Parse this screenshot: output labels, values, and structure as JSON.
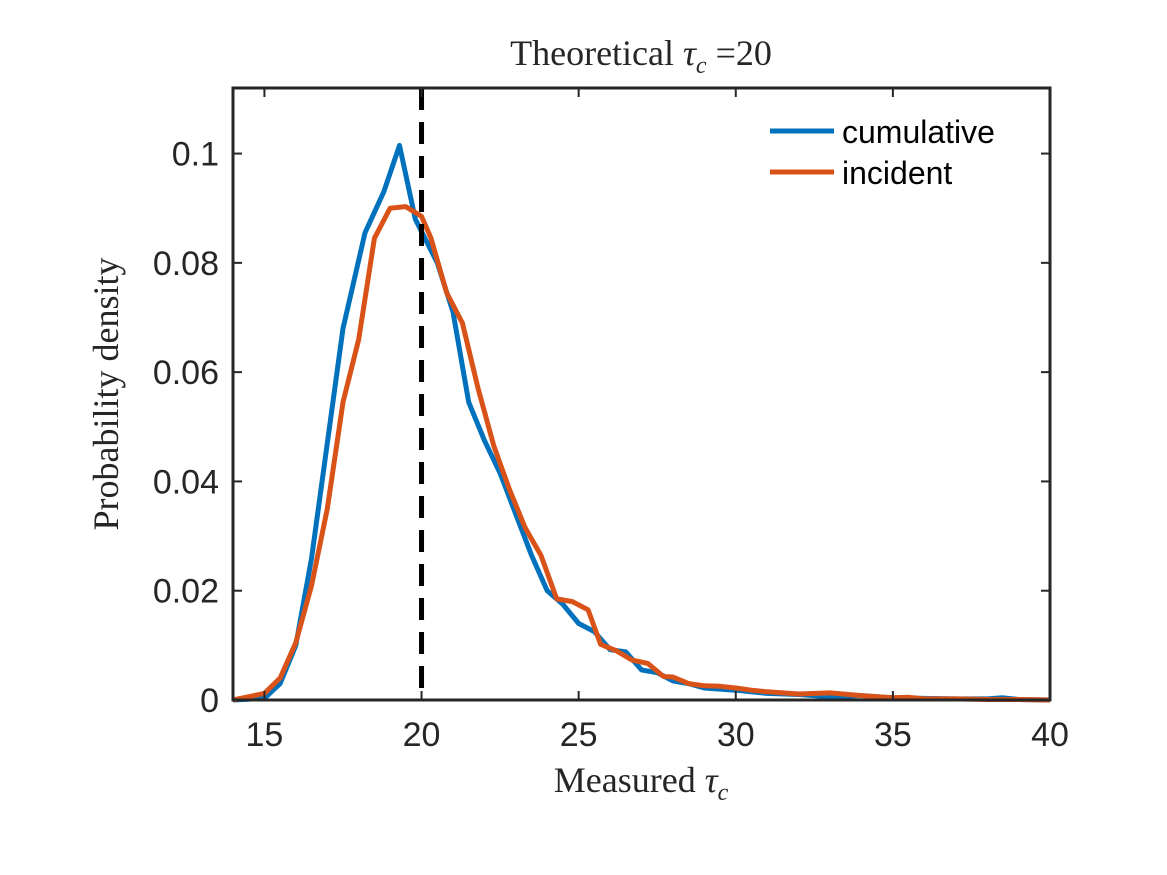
{
  "chart_data": {
    "type": "line",
    "title": {
      "prefix": "Theoretical ",
      "symbol": "τ",
      "subscript": "c",
      "suffix": " =20"
    },
    "xlabel": {
      "prefix": "Measured ",
      "symbol": "τ",
      "subscript": "c"
    },
    "ylabel": "Probability density",
    "xlim": [
      14,
      40
    ],
    "ylim": [
      0,
      0.112
    ],
    "xticks": [
      15,
      20,
      25,
      30,
      35,
      40
    ],
    "xtick_labels": [
      "15",
      "20",
      "25",
      "30",
      "35",
      "40"
    ],
    "yticks": [
      0,
      0.02,
      0.04,
      0.06,
      0.08,
      0.1
    ],
    "ytick_labels": [
      "0",
      "0.02",
      "0.04",
      "0.06",
      "0.08",
      "0.1"
    ],
    "grid": false,
    "legend_position": "top-right",
    "reference_line": {
      "x": 20,
      "style": "dashed",
      "color": "#000000"
    },
    "series": [
      {
        "name": "cumulative",
        "color": "#0072BD",
        "x": [
          14,
          15,
          15.5,
          16,
          16.5,
          17,
          17.5,
          18.2,
          18.8,
          19.3,
          19.8,
          20.5,
          21,
          21.5,
          22,
          22.5,
          23,
          23.5,
          24,
          24.5,
          25,
          25.5,
          26,
          26.5,
          27,
          27.5,
          28,
          28.5,
          29,
          29.5,
          30,
          31,
          32,
          33,
          34,
          35,
          36,
          37,
          38,
          38.5,
          39,
          40
        ],
        "y": [
          0,
          0.0003,
          0.003,
          0.01,
          0.026,
          0.047,
          0.068,
          0.0855,
          0.093,
          0.1015,
          0.088,
          0.08,
          0.071,
          0.0545,
          0.0475,
          0.0415,
          0.034,
          0.0265,
          0.02,
          0.0175,
          0.014,
          0.0125,
          0.0092,
          0.0088,
          0.0055,
          0.005,
          0.0035,
          0.003,
          0.0022,
          0.002,
          0.0018,
          0.0012,
          0.001,
          0.0006,
          0.0008,
          0.0004,
          0.0003,
          0.0002,
          0.0002,
          0.0004,
          0.0001,
          0
        ]
      },
      {
        "name": "incident",
        "color": "#D95319",
        "x": [
          14,
          15,
          15.5,
          16,
          16.5,
          17,
          17.5,
          18,
          18.5,
          19,
          19.5,
          20,
          20.3,
          20.8,
          21.3,
          21.8,
          22.3,
          22.8,
          23.3,
          23.8,
          24.3,
          24.8,
          25.3,
          25.7,
          26.2,
          26.7,
          27.2,
          27.7,
          28,
          28.5,
          29,
          29.5,
          30,
          30.5,
          31,
          32,
          33,
          34,
          35,
          35.5,
          36,
          37,
          38,
          39,
          40
        ],
        "y": [
          0,
          0.0012,
          0.004,
          0.0105,
          0.021,
          0.035,
          0.0545,
          0.066,
          0.0845,
          0.09,
          0.0903,
          0.0885,
          0.0845,
          0.0745,
          0.069,
          0.057,
          0.0465,
          0.0385,
          0.0315,
          0.0265,
          0.0185,
          0.018,
          0.0165,
          0.0102,
          0.009,
          0.0073,
          0.0067,
          0.0043,
          0.0042,
          0.003,
          0.0026,
          0.0025,
          0.0022,
          0.0018,
          0.0015,
          0.0011,
          0.0013,
          0.0008,
          0.0004,
          0.0005,
          0.0002,
          0.0002,
          0.0001,
          0.0001,
          0
        ]
      }
    ]
  }
}
